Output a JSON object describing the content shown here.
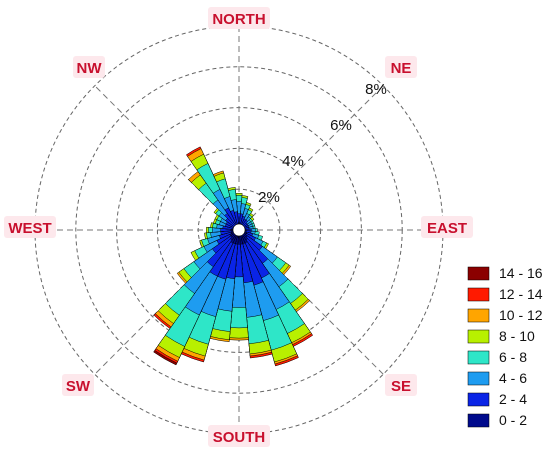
{
  "chart_data": {
    "type": "windrose",
    "title": "",
    "directions": {
      "north": "NORTH",
      "ne": "NE",
      "east": "EAST",
      "se": "SE",
      "south": "SOUTH",
      "sw": "SW",
      "west": "WEST",
      "nw": "NW"
    },
    "rings": [
      {
        "value": 2,
        "label": "2%"
      },
      {
        "value": 4,
        "label": "4%"
      },
      {
        "value": 6,
        "label": "6%"
      },
      {
        "value": 8,
        "label": "8%"
      },
      {
        "value": 10,
        "label": ""
      }
    ],
    "rmax": 10,
    "grid": true,
    "legend_position": "bottom-right",
    "legend": [
      {
        "label": "14 - 16",
        "color": "#8b0000"
      },
      {
        "label": "12 - 14",
        "color": "#ff1a00"
      },
      {
        "label": "10 - 12",
        "color": "#ffa500"
      },
      {
        "label": "8 - 10",
        "color": "#b8f000"
      },
      {
        "label": "6 - 8",
        "color": "#2ee6c8"
      },
      {
        "label": "4 - 6",
        "color": "#1e9cf0"
      },
      {
        "label": "2 - 4",
        "color": "#0a24e6"
      },
      {
        "label": "0 - 2",
        "color": "#000a8c"
      }
    ],
    "bins_order_inner_to_outer": [
      "0 - 2",
      "2 - 4",
      "4 - 6",
      "6 - 8",
      "8 - 10",
      "10 - 12",
      "12 - 14",
      "14 - 16"
    ],
    "sectors": [
      {
        "dir": 0,
        "cum": [
          0.3,
          0.8,
          1.4,
          1.7,
          1.8,
          1.8,
          1.8,
          1.8
        ]
      },
      {
        "dir": 10,
        "cum": [
          0.3,
          0.8,
          1.3,
          1.6,
          1.7,
          1.7,
          1.7,
          1.7
        ]
      },
      {
        "dir": 20,
        "cum": [
          0.3,
          0.7,
          1.1,
          1.3,
          1.4,
          1.4,
          1.4,
          1.4
        ]
      },
      {
        "dir": 30,
        "cum": [
          0.3,
          0.6,
          0.9,
          1.1,
          1.2,
          1.2,
          1.2,
          1.2
        ]
      },
      {
        "dir": 40,
        "cum": [
          0.3,
          0.6,
          0.8,
          0.9,
          1.0,
          1.0,
          1.0,
          1.0
        ]
      },
      {
        "dir": 50,
        "cum": [
          0.3,
          0.5,
          0.7,
          0.8,
          0.9,
          0.9,
          0.9,
          0.9
        ]
      },
      {
        "dir": 60,
        "cum": [
          0.3,
          0.5,
          0.7,
          0.8,
          0.8,
          0.8,
          0.8,
          0.8
        ]
      },
      {
        "dir": 70,
        "cum": [
          0.3,
          0.5,
          0.7,
          0.8,
          0.8,
          0.8,
          0.8,
          0.8
        ]
      },
      {
        "dir": 80,
        "cum": [
          0.3,
          0.5,
          0.7,
          0.8,
          0.8,
          0.8,
          0.8,
          0.8
        ]
      },
      {
        "dir": 90,
        "cum": [
          0.3,
          0.6,
          0.8,
          0.9,
          0.9,
          0.9,
          0.9,
          0.9
        ]
      },
      {
        "dir": 100,
        "cum": [
          0.3,
          0.6,
          0.8,
          1.0,
          1.0,
          1.0,
          1.0,
          1.0
        ]
      },
      {
        "dir": 110,
        "cum": [
          0.4,
          0.7,
          1.0,
          1.2,
          1.2,
          1.2,
          1.2,
          1.2
        ]
      },
      {
        "dir": 120,
        "cum": [
          0.4,
          0.9,
          1.3,
          1.5,
          1.6,
          1.6,
          1.6,
          1.6
        ]
      },
      {
        "dir": 130,
        "cum": [
          0.5,
          1.4,
          2.3,
          2.8,
          3.0,
          3.1,
          3.1,
          3.1
        ]
      },
      {
        "dir": 140,
        "cum": [
          0.6,
          2.0,
          3.4,
          4.4,
          4.8,
          4.9,
          4.9,
          4.9
        ]
      },
      {
        "dir": 150,
        "cum": [
          0.7,
          2.6,
          4.3,
          5.6,
          6.1,
          6.2,
          6.3,
          6.3
        ]
      },
      {
        "dir": 160,
        "cum": [
          0.7,
          2.8,
          4.6,
          6.1,
          6.7,
          6.8,
          6.9,
          6.9
        ]
      },
      {
        "dir": 170,
        "cum": [
          0.7,
          2.6,
          4.3,
          5.6,
          6.1,
          6.2,
          6.3,
          6.3
        ]
      },
      {
        "dir": 180,
        "cum": [
          0.7,
          2.3,
          3.8,
          4.8,
          5.3,
          5.4,
          5.4,
          5.4
        ]
      },
      {
        "dir": 190,
        "cum": [
          0.7,
          2.4,
          4.0,
          5.0,
          5.4,
          5.5,
          5.5,
          5.5
        ]
      },
      {
        "dir": 200,
        "cum": [
          0.7,
          2.5,
          4.4,
          5.8,
          6.4,
          6.6,
          6.7,
          6.7
        ]
      },
      {
        "dir": 210,
        "cum": [
          0.7,
          2.5,
          4.6,
          6.3,
          6.9,
          7.1,
          7.2,
          7.3
        ]
      },
      {
        "dir": 220,
        "cum": [
          0.6,
          2.2,
          3.8,
          5.1,
          5.6,
          5.8,
          5.9,
          5.9
        ]
      },
      {
        "dir": 230,
        "cum": [
          0.5,
          1.6,
          2.7,
          3.3,
          3.6,
          3.7,
          3.7,
          3.7
        ]
      },
      {
        "dir": 240,
        "cum": [
          0.5,
          1.2,
          1.9,
          2.4,
          2.6,
          2.6,
          2.6,
          2.6
        ]
      },
      {
        "dir": 250,
        "cum": [
          0.4,
          1.0,
          1.6,
          1.9,
          2.0,
          2.0,
          2.0,
          2.0
        ]
      },
      {
        "dir": 260,
        "cum": [
          0.4,
          0.9,
          1.4,
          1.6,
          1.7,
          1.7,
          1.7,
          1.7
        ]
      },
      {
        "dir": 270,
        "cum": [
          0.4,
          0.9,
          1.3,
          1.5,
          1.6,
          1.6,
          1.6,
          1.6
        ]
      },
      {
        "dir": 280,
        "cum": [
          0.3,
          0.8,
          1.1,
          1.3,
          1.4,
          1.4,
          1.4,
          1.4
        ]
      },
      {
        "dir": 290,
        "cum": [
          0.3,
          0.7,
          1.0,
          1.2,
          1.3,
          1.3,
          1.3,
          1.3
        ]
      },
      {
        "dir": 300,
        "cum": [
          0.3,
          0.7,
          1.0,
          1.2,
          1.3,
          1.3,
          1.3,
          1.3
        ]
      },
      {
        "dir": 310,
        "cum": [
          0.3,
          0.8,
          1.2,
          1.4,
          1.5,
          1.5,
          1.5,
          1.5
        ]
      },
      {
        "dir": 320,
        "cum": [
          0.3,
          1.0,
          1.8,
          2.8,
          3.3,
          3.5,
          3.5,
          3.5
        ]
      },
      {
        "dir": 330,
        "cum": [
          0.3,
          1.2,
          2.2,
          3.6,
          4.1,
          4.4,
          4.5,
          4.5
        ]
      },
      {
        "dir": 340,
        "cum": [
          0.3,
          1.0,
          1.7,
          2.6,
          2.9,
          3.0,
          3.0,
          3.0
        ]
      },
      {
        "dir": 350,
        "cum": [
          0.3,
          0.9,
          1.5,
          2.0,
          2.1,
          2.1,
          2.1,
          2.1
        ]
      }
    ]
  }
}
